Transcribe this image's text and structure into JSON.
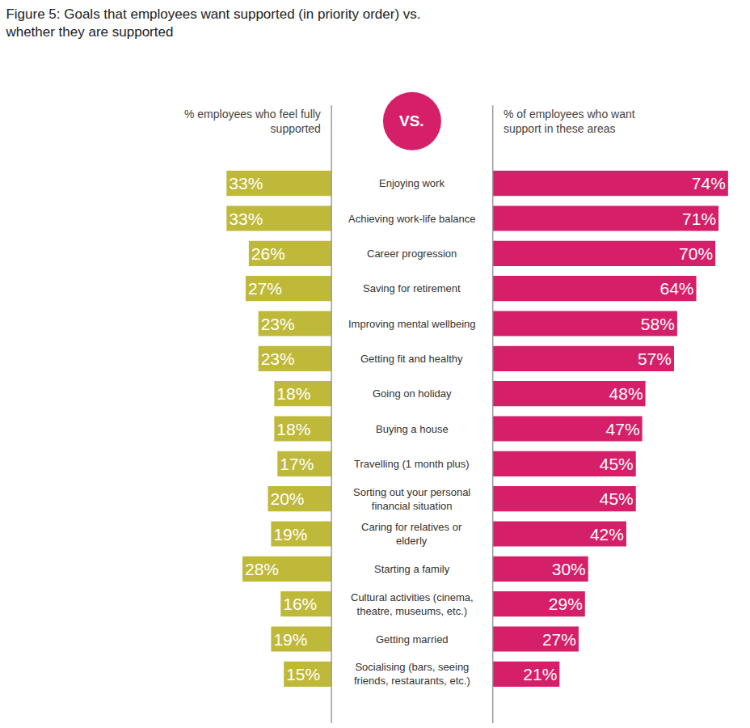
{
  "chart_data": {
    "type": "bar",
    "orientation": "horizontal",
    "title": "Figure 5: Goals that employees want supported (in priority order) vs. whether they are supported",
    "annotations": [
      "VS."
    ],
    "categories": [
      "Enjoying work",
      "Achieving work-life balance",
      "Career progression",
      "Saving for retirement",
      "Improving mental wellbeing",
      "Getting fit and healthy",
      "Going on holiday",
      "Buying a house",
      "Travelling (1 month plus)",
      "Sorting out your personal financial situation",
      "Caring for relatives or elderly",
      "Starting a family",
      "Cultural activities (cinema, theatre, museums, etc.)",
      "Getting married",
      "Socialising (bars, seeing friends, restaurants, etc.)"
    ],
    "series": [
      {
        "name": "% employees who feel fully supported",
        "color": "#bfb93a",
        "values": [
          33,
          33,
          26,
          27,
          23,
          23,
          18,
          18,
          17,
          20,
          19,
          28,
          16,
          19,
          15
        ],
        "value_labels": [
          "33%",
          "33%",
          "26%",
          "27%",
          "23%",
          "23%",
          "18%",
          "18%",
          "17%",
          "20%",
          "19%",
          "28%",
          "16%",
          "19%",
          "15%"
        ]
      },
      {
        "name": "% of employees who want support in these areas",
        "color": "#d61f69",
        "values": [
          74,
          71,
          70,
          64,
          58,
          57,
          48,
          47,
          45,
          45,
          42,
          30,
          29,
          27,
          21
        ],
        "value_labels": [
          "74%",
          "71%",
          "70%",
          "64%",
          "58%",
          "57%",
          "48%",
          "47%",
          "45%",
          "45%",
          "42%",
          "30%",
          "29%",
          "27%",
          "21%"
        ]
      }
    ],
    "xlim": [
      0,
      75
    ],
    "data_labels": true,
    "tick_labels": false,
    "grid": false
  }
}
